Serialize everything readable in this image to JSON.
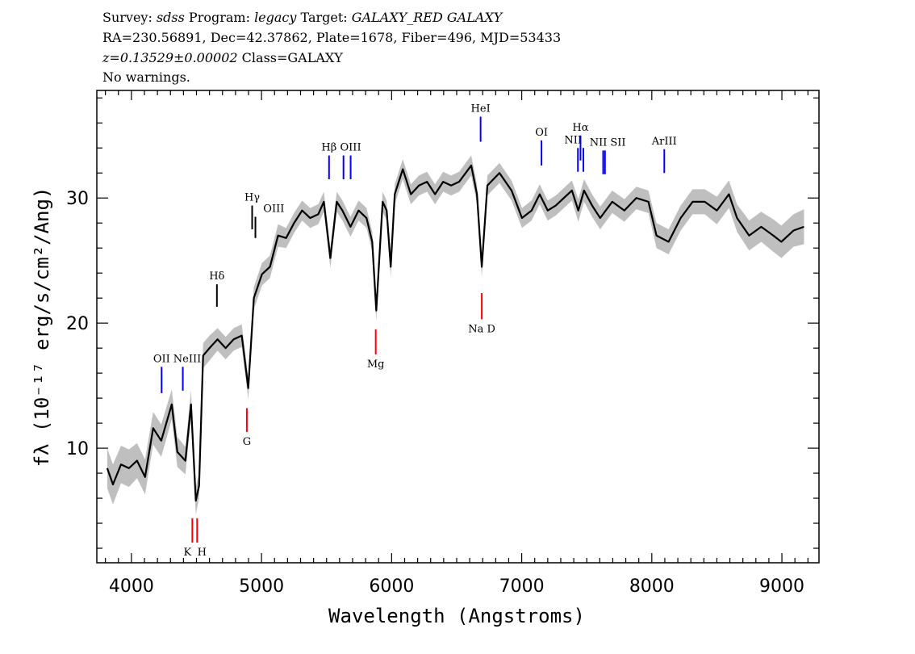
{
  "header": {
    "line1": {
      "survey_label": "Survey:",
      "survey": "sdss",
      "program_label": "Program:",
      "program": "legacy",
      "target_label": "Target:",
      "target": "GALAXY_RED GALAXY"
    },
    "line2": "RA=230.56891, Dec=42.37862, Plate=1678, Fiber=496, MJD=53433",
    "line3": {
      "redshift": "z=0.13529±0.00002",
      "class": "Class=GALAXY"
    },
    "line4": "No warnings."
  },
  "chart_data": {
    "type": "line",
    "title": "",
    "xlabel": "Wavelength (Angstroms)",
    "ylabel": "fλ (10⁻¹⁷ erg/s/cm²/Ang)",
    "xlim": [
      3734,
      9285
    ],
    "ylim": [
      0.84,
      38.6
    ],
    "xticks": [
      4000,
      5000,
      6000,
      7000,
      8000,
      9000
    ],
    "xtick_labels": [
      "4000",
      "5000",
      "6000",
      "7000",
      "8000",
      "9000"
    ],
    "yticks": [
      10,
      20,
      30
    ],
    "ytick_labels": [
      "10",
      "20",
      "30"
    ],
    "grid": false,
    "colors": {
      "flux": "#000000",
      "error_band": "#bfbfbf",
      "emission": "#0000ff",
      "absorption": "#ff0000",
      "other": "#000000"
    },
    "series": {
      "wavelength": [
        3814,
        3858,
        3920,
        3981,
        4043,
        4105,
        4167,
        4229,
        4310,
        4353,
        4415,
        4458,
        4495,
        4520,
        4551,
        4600,
        4662,
        4724,
        4786,
        4848,
        4898,
        4941,
        5003,
        5065,
        5127,
        5189,
        5250,
        5312,
        5374,
        5436,
        5479,
        5529,
        5578,
        5622,
        5684,
        5746,
        5807,
        5851,
        5882,
        5931,
        5962,
        5993,
        6024,
        6086,
        6148,
        6210,
        6272,
        6334,
        6396,
        6457,
        6519,
        6612,
        6656,
        6693,
        6736,
        6829,
        6922,
        7002,
        7076,
        7138,
        7200,
        7262,
        7324,
        7386,
        7435,
        7479,
        7541,
        7603,
        7696,
        7789,
        7881,
        7974,
        8036,
        8129,
        8222,
        8314,
        8407,
        8500,
        8593,
        8655,
        8748,
        8841,
        8934,
        8996,
        9089,
        9170
      ],
      "flux": [
        8.4,
        7.1,
        8.7,
        8.4,
        9.0,
        7.7,
        11.6,
        10.6,
        13.5,
        9.7,
        9.0,
        13.5,
        5.8,
        7.0,
        17.4,
        18.0,
        18.7,
        18.0,
        18.7,
        19.0,
        14.8,
        22.0,
        23.9,
        24.5,
        27.0,
        26.8,
        28.0,
        29.0,
        28.4,
        28.7,
        29.7,
        25.2,
        29.7,
        29.0,
        27.7,
        29.0,
        28.4,
        26.5,
        21.0,
        29.7,
        29.0,
        24.5,
        30.3,
        32.3,
        30.3,
        31.0,
        31.3,
        30.3,
        31.3,
        31.0,
        31.3,
        32.6,
        30.3,
        24.5,
        31.0,
        32.0,
        30.6,
        28.4,
        29.0,
        30.3,
        29.0,
        29.4,
        30.0,
        30.6,
        29.0,
        30.6,
        29.4,
        28.4,
        29.7,
        29.0,
        30.0,
        29.7,
        27.0,
        26.5,
        28.4,
        29.7,
        29.7,
        29.0,
        30.3,
        28.4,
        27.0,
        27.7,
        27.0,
        26.5,
        27.4,
        27.7
      ],
      "flux_err": [
        1.6,
        1.6,
        1.5,
        1.5,
        1.4,
        1.4,
        1.3,
        1.3,
        1.2,
        1.2,
        1.1,
        1.1,
        1.1,
        1.0,
        1.0,
        1.0,
        0.9,
        0.9,
        0.9,
        0.9,
        0.9,
        0.9,
        0.9,
        0.9,
        0.9,
        0.8,
        0.8,
        0.8,
        0.8,
        0.8,
        0.8,
        0.8,
        0.8,
        0.8,
        0.8,
        0.8,
        0.8,
        0.8,
        0.8,
        0.8,
        0.8,
        0.8,
        0.8,
        0.8,
        0.8,
        0.8,
        0.8,
        0.8,
        0.8,
        0.8,
        0.8,
        0.8,
        0.8,
        0.8,
        0.8,
        0.8,
        0.8,
        0.8,
        0.8,
        0.8,
        0.8,
        0.8,
        0.8,
        0.8,
        0.9,
        0.9,
        0.9,
        0.9,
        0.9,
        0.9,
        0.9,
        0.9,
        1.0,
        1.0,
        1.0,
        1.0,
        1.0,
        1.1,
        1.1,
        1.1,
        1.2,
        1.2,
        1.3,
        1.3,
        1.3,
        1.4
      ]
    },
    "lines": [
      {
        "label": "OII",
        "wavelength": 4232,
        "range": [
          14.4,
          16.5
        ],
        "kind": "emission",
        "label_pos": "top"
      },
      {
        "label": "NeIII",
        "wavelength": 4395,
        "range": [
          14.6,
          16.5
        ],
        "kind": "emission",
        "label_pos": "top"
      },
      {
        "label": "Hδ",
        "wavelength": 4657,
        "range": [
          21.3,
          23.1
        ],
        "kind": "other",
        "label_pos": "top"
      },
      {
        "label": "Hγ",
        "wavelength": 4928,
        "range": [
          27.5,
          29.4
        ],
        "kind": "other",
        "label_pos": "top"
      },
      {
        "label": "OIII",
        "wavelength": 4953,
        "range": [
          26.8,
          28.5
        ],
        "kind": "other",
        "label_pos": "top"
      },
      {
        "label": "Hβ",
        "wavelength": 5519,
        "range": [
          31.5,
          33.4
        ],
        "kind": "emission",
        "label_pos": "top"
      },
      {
        "label": "",
        "wavelength": 5630,
        "range": [
          31.5,
          33.4
        ],
        "kind": "emission",
        "label_pos": "top"
      },
      {
        "label": "OIII",
        "wavelength": 5685,
        "range": [
          31.5,
          33.4
        ],
        "kind": "emission",
        "label_pos": "top"
      },
      {
        "label": "HeI",
        "wavelength": 6684,
        "range": [
          34.5,
          36.5
        ],
        "kind": "emission",
        "label_pos": "top"
      },
      {
        "label": "OI",
        "wavelength": 7152,
        "range": [
          32.6,
          34.6
        ],
        "kind": "emission",
        "label_pos": "top"
      },
      {
        "label": "NII",
        "wavelength": 7432,
        "range": [
          32.1,
          34.0
        ],
        "kind": "emission",
        "label_pos": "top-left"
      },
      {
        "label": "Hα",
        "wavelength": 7452,
        "range": [
          33.0,
          35.0
        ],
        "kind": "emission",
        "label_pos": "top"
      },
      {
        "label": "",
        "wavelength": 7474,
        "range": [
          32.1,
          34.0
        ],
        "kind": "emission",
        "label_pos": "top"
      },
      {
        "label": "NII",
        "wavelength": 7626,
        "range": [
          31.9,
          33.8
        ],
        "kind": "emission",
        "label_pos": "top-left"
      },
      {
        "label": "SII",
        "wavelength": 7640,
        "range": [
          31.9,
          33.8
        ],
        "kind": "emission",
        "label_pos": "top-right"
      },
      {
        "label": "ArIII",
        "wavelength": 8096,
        "range": [
          32.0,
          33.9
        ],
        "kind": "emission",
        "label_pos": "top"
      },
      {
        "label": "K",
        "wavelength": 4468,
        "range": [
          2.45,
          4.4
        ],
        "kind": "absorption",
        "label_pos": "bottom-left"
      },
      {
        "label": "H",
        "wavelength": 4505,
        "range": [
          2.45,
          4.4
        ],
        "kind": "absorption",
        "label_pos": "bottom-right"
      },
      {
        "label": "G",
        "wavelength": 4887,
        "range": [
          11.3,
          13.2
        ],
        "kind": "absorption",
        "label_pos": "bottom"
      },
      {
        "label": "Mg",
        "wavelength": 5878,
        "range": [
          17.5,
          19.5
        ],
        "kind": "absorption",
        "label_pos": "bottom"
      },
      {
        "label": "Na D",
        "wavelength": 6693,
        "range": [
          20.3,
          22.4
        ],
        "kind": "absorption",
        "label_pos": "bottom"
      }
    ]
  }
}
